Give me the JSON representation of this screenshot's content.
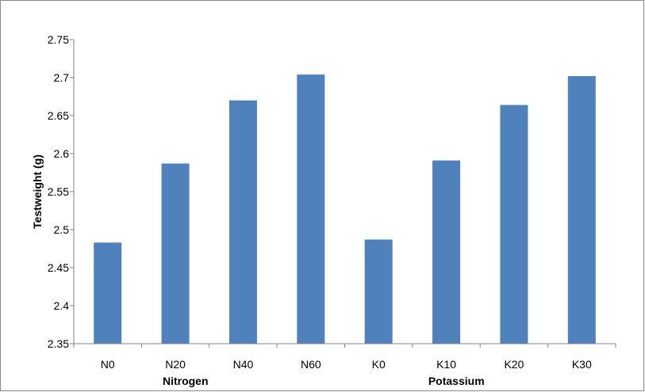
{
  "chart_data": {
    "type": "bar",
    "title": "",
    "xlabel": "",
    "ylabel": "Testweight (g)",
    "categories": [
      "N0",
      "N20",
      "N40",
      "N60",
      "K0",
      "K10",
      "K20",
      "K30"
    ],
    "group_labels": [
      "Nitrogen",
      "Potassium"
    ],
    "series": [
      {
        "values": [
          2.483,
          2.587,
          2.67,
          2.704,
          2.487,
          2.591,
          2.664,
          2.702
        ]
      }
    ],
    "ylim": [
      2.35,
      2.75
    ],
    "yticks": [
      "2.35",
      "2.4",
      "2.45",
      "2.5",
      "2.55",
      "2.6",
      "2.65",
      "2.7",
      "2.75"
    ],
    "grid": false,
    "legend": "none",
    "bar_color": "#4f81bd"
  }
}
